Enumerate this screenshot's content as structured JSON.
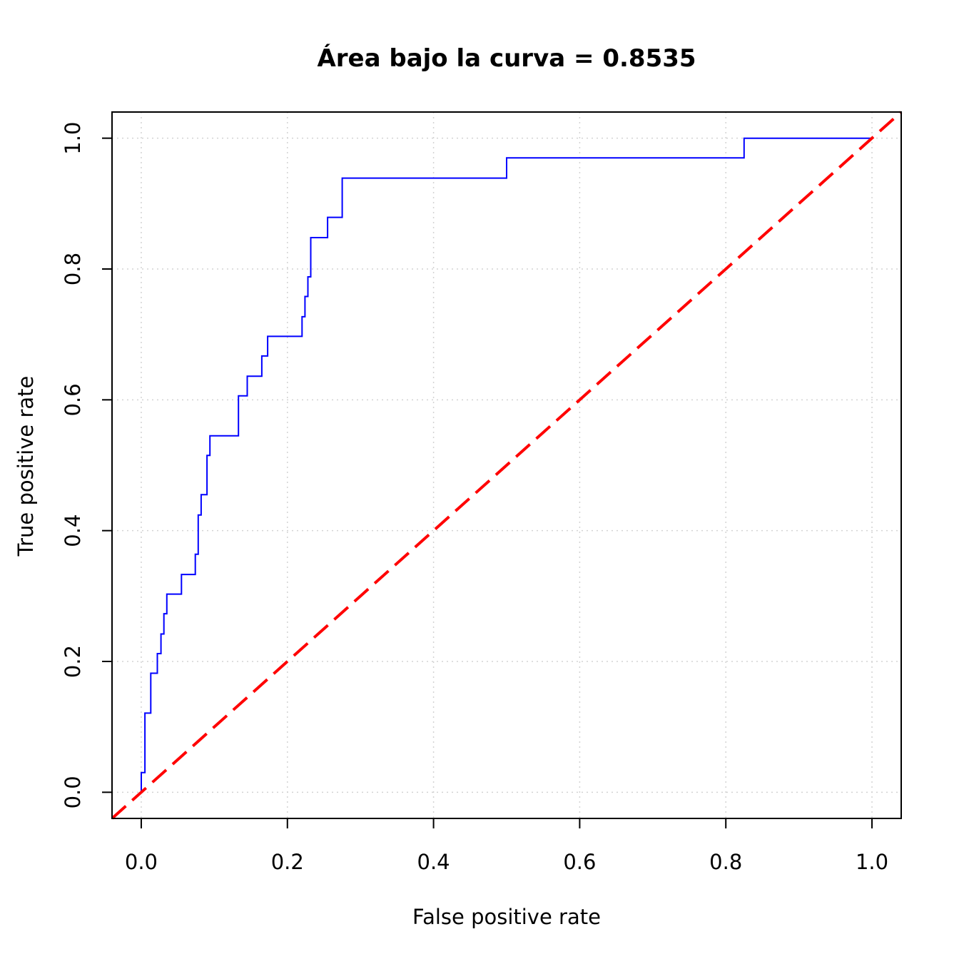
{
  "chart_data": {
    "type": "line",
    "title": "Área bajo la curva = 0.8535",
    "xlabel": "False positive rate",
    "ylabel": "True positive rate",
    "xlim": [
      -0.04,
      1.04
    ],
    "ylim": [
      -0.04,
      1.04
    ],
    "xticks": [
      "0.0",
      "0.2",
      "0.4",
      "0.6",
      "0.8",
      "1.0"
    ],
    "yticks": [
      "0.0",
      "0.2",
      "0.4",
      "0.6",
      "0.8",
      "1.0"
    ],
    "grid": true,
    "series": [
      {
        "color": "#0000ff",
        "style": "step",
        "points": [
          [
            0.0,
            0.0
          ],
          [
            0.0,
            0.03
          ],
          [
            0.005,
            0.03
          ],
          [
            0.005,
            0.121
          ],
          [
            0.013,
            0.121
          ],
          [
            0.013,
            0.182
          ],
          [
            0.022,
            0.182
          ],
          [
            0.022,
            0.212
          ],
          [
            0.027,
            0.212
          ],
          [
            0.027,
            0.242
          ],
          [
            0.031,
            0.242
          ],
          [
            0.031,
            0.273
          ],
          [
            0.035,
            0.273
          ],
          [
            0.035,
            0.303
          ],
          [
            0.055,
            0.303
          ],
          [
            0.055,
            0.333
          ],
          [
            0.074,
            0.333
          ],
          [
            0.074,
            0.364
          ],
          [
            0.078,
            0.364
          ],
          [
            0.078,
            0.424
          ],
          [
            0.082,
            0.424
          ],
          [
            0.082,
            0.455
          ],
          [
            0.09,
            0.455
          ],
          [
            0.09,
            0.515
          ],
          [
            0.094,
            0.515
          ],
          [
            0.094,
            0.545
          ],
          [
            0.133,
            0.545
          ],
          [
            0.133,
            0.606
          ],
          [
            0.145,
            0.606
          ],
          [
            0.145,
            0.636
          ],
          [
            0.165,
            0.636
          ],
          [
            0.165,
            0.667
          ],
          [
            0.173,
            0.667
          ],
          [
            0.173,
            0.697
          ],
          [
            0.22,
            0.697
          ],
          [
            0.22,
            0.727
          ],
          [
            0.224,
            0.727
          ],
          [
            0.224,
            0.758
          ],
          [
            0.228,
            0.758
          ],
          [
            0.228,
            0.788
          ],
          [
            0.232,
            0.788
          ],
          [
            0.232,
            0.848
          ],
          [
            0.255,
            0.848
          ],
          [
            0.255,
            0.879
          ],
          [
            0.275,
            0.879
          ],
          [
            0.275,
            0.939
          ],
          [
            0.5,
            0.939
          ],
          [
            0.5,
            0.97
          ],
          [
            0.825,
            0.97
          ],
          [
            0.825,
            1.0
          ],
          [
            1.0,
            1.0
          ]
        ]
      },
      {
        "color": "#ff0000",
        "style": "dashed",
        "points": [
          [
            -0.04,
            -0.04
          ],
          [
            1.04,
            1.04
          ]
        ]
      }
    ]
  }
}
